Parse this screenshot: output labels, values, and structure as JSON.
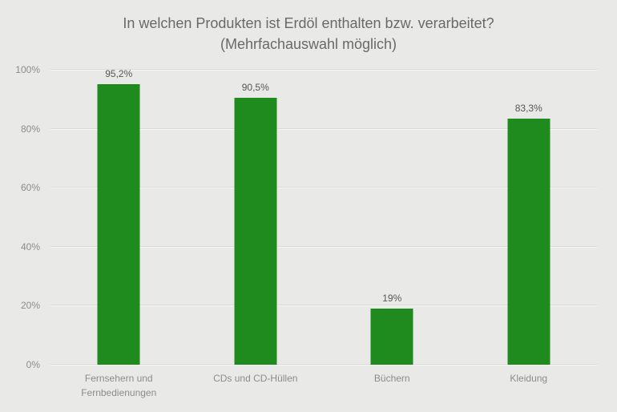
{
  "title": {
    "line1": "In welchen Produkten ist Erdöl enthalten bzw. verarbeitet?",
    "line2": "(Mehrfachauswahl möglich)"
  },
  "colors": {
    "background": "#e9e9e7",
    "bar": "#1f8b1f",
    "title_text": "#696969",
    "axis_text": "#8c8c8c",
    "data_label_text": "#565656",
    "gridline": "#d9d9d7"
  },
  "chart_data": {
    "type": "bar",
    "title": "In welchen Produkten ist Erdöl enthalten bzw. verarbeitet? (Mehrfachauswahl möglich)",
    "categories": [
      "Fernsehern und Fernbedienungen",
      "CDs und CD-Hüllen",
      "Büchern",
      "Kleidung"
    ],
    "values": [
      95.2,
      90.5,
      19,
      83.3
    ],
    "value_labels": [
      "95,2%",
      "90,5%",
      "19%",
      "83,3%"
    ],
    "xlabel": "",
    "ylabel": "",
    "ylim": [
      0,
      100
    ],
    "yticks": [
      0,
      20,
      40,
      60,
      80,
      100
    ],
    "ytick_labels": [
      "0%",
      "20%",
      "40%",
      "60%",
      "80%",
      "100%"
    ],
    "grid": true,
    "legend": false,
    "bar_color": "#1f8b1f"
  }
}
